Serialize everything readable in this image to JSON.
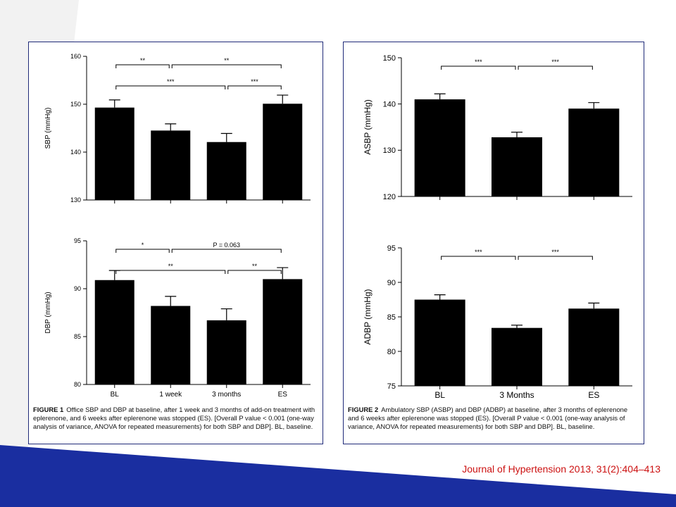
{
  "citation": "Journal of Hypertension 2013, 31(2):404–413",
  "colors": {
    "bar": "#000000",
    "border": "#1f2a78",
    "citation": "#cc1111",
    "band": "#1a2ea0",
    "top_shape": "#f2f2f2"
  },
  "figure1": {
    "caption_label": "FIGURE 1",
    "caption_text": "Office SBP and DBP at baseline, after 1 week and 3 months of add-on treatment with eplerenone, and 6 weeks after eplerenone was stopped (ES). [Overall P value < 0.001 (one-way analysis of variance, ANOVA for repeated measurements) for both SBP and DBP]. BL, baseline."
  },
  "figure2": {
    "caption_label": "FIGURE 2",
    "caption_text": "Ambulatory SBP (ASBP) and DBP (ADBP) at baseline, after 3 months of eplerenone and 6 weeks after eplerenone was stopped (ES). [Overall P value < 0.001 (one-way analysis of variance, ANOVA for repeated measurements) for both SBP and DBP]. BL, baseline."
  },
  "chart_data": [
    {
      "id": "sbp",
      "type": "bar",
      "categories": [
        "BL",
        "1 week",
        "3 months",
        "ES"
      ],
      "show_categories": false,
      "values": [
        149.3,
        144.5,
        142.1,
        150.1
      ],
      "errors": [
        1.6,
        1.4,
        1.8,
        1.8
      ],
      "ylabel": "SBP (mmHg)",
      "ylim": [
        130,
        160
      ],
      "yticks": [
        130,
        140,
        150,
        160
      ],
      "brackets": [
        {
          "from": 0,
          "to": 1,
          "label": "**",
          "level": 0
        },
        {
          "from": 1,
          "to": 3,
          "label": "**",
          "level": 0
        },
        {
          "from": 0,
          "to": 2,
          "label": "***",
          "level": 1
        },
        {
          "from": 2,
          "to": 3,
          "label": "***",
          "level": 1
        }
      ]
    },
    {
      "id": "dbp",
      "type": "bar",
      "categories": [
        "BL",
        "1 week",
        "3 months",
        "ES"
      ],
      "show_categories": true,
      "values": [
        90.9,
        88.2,
        86.7,
        91.0
      ],
      "errors": [
        1.0,
        1.0,
        1.2,
        1.2
      ],
      "ylabel": "DBP (mmHg)",
      "ylim": [
        80,
        95
      ],
      "yticks": [
        80,
        85,
        90,
        95
      ],
      "brackets": [
        {
          "from": 0,
          "to": 1,
          "label": "*",
          "level": 0
        },
        {
          "from": 1,
          "to": 3,
          "label": "P = 0.063",
          "level": 0
        },
        {
          "from": 0,
          "to": 2,
          "label": "**",
          "level": 1
        },
        {
          "from": 2,
          "to": 3,
          "label": "**",
          "level": 1
        }
      ]
    },
    {
      "id": "asbp",
      "type": "bar",
      "categories": [
        "BL",
        "3 Months",
        "ES"
      ],
      "show_categories": false,
      "values": [
        141.0,
        132.8,
        139.0
      ],
      "errors": [
        1.2,
        1.1,
        1.3
      ],
      "ylabel": "ASBP (mmHg)",
      "ylim": [
        120,
        150
      ],
      "yticks": [
        120,
        130,
        140,
        150
      ],
      "brackets": [
        {
          "from": 0,
          "to": 1,
          "label": "***",
          "level": 0
        },
        {
          "from": 1,
          "to": 2,
          "label": "***",
          "level": 0
        }
      ]
    },
    {
      "id": "adbp",
      "type": "bar",
      "categories": [
        "BL",
        "3 Months",
        "ES"
      ],
      "show_categories": true,
      "values": [
        87.5,
        83.4,
        86.2
      ],
      "errors": [
        0.7,
        0.4,
        0.8
      ],
      "ylabel": "ADBP (mmHg)",
      "ylim": [
        75,
        95
      ],
      "yticks": [
        75,
        80,
        85,
        90,
        95
      ],
      "brackets": [
        {
          "from": 0,
          "to": 1,
          "label": "***",
          "level": 0
        },
        {
          "from": 1,
          "to": 2,
          "label": "***",
          "level": 0
        }
      ]
    }
  ]
}
